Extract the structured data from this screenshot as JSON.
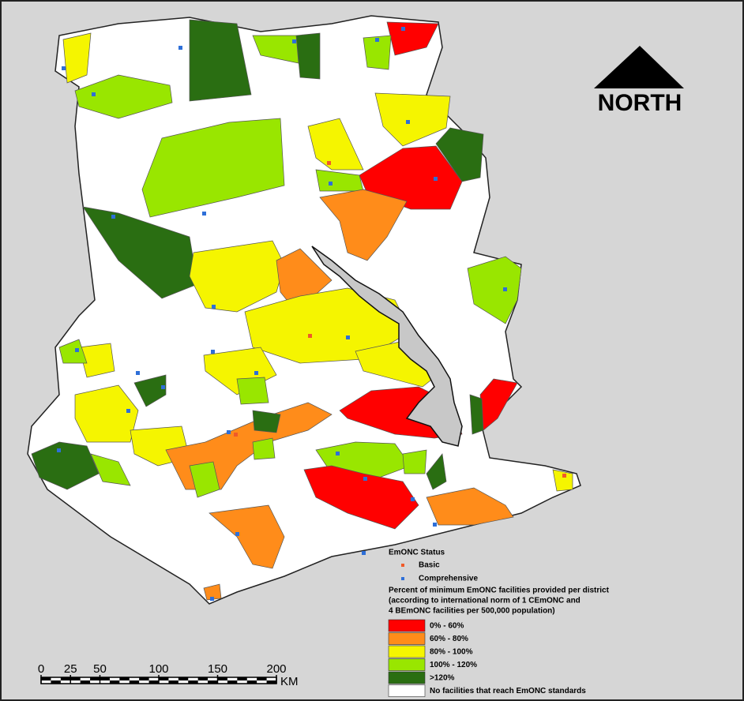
{
  "north_arrow": {
    "label": "NORTH"
  },
  "legend": {
    "status_title": "EmONC Status",
    "status_items": [
      {
        "label": "Basic",
        "color": "#f05a28"
      },
      {
        "label": "Comprehensive",
        "color": "#2e6fd8"
      }
    ],
    "percent_title": [
      "Percent of minimum EmONC facilities provided per district",
      "(according to international norm of 1 CEmONC and",
      "4 BEmONC facilities per 500,000 population)"
    ],
    "classes": [
      {
        "label": "0% - 60%",
        "color": "#ff0000"
      },
      {
        "label": "60% - 80%",
        "color": "#ff8c1a"
      },
      {
        "label": "80% - 100%",
        "color": "#f5f500"
      },
      {
        "label": "100% - 120%",
        "color": "#99e600"
      },
      {
        "label": ">120%",
        "color": "#2a6e12"
      },
      {
        "label": "No facilities that reach EmONC standards",
        "color": "#ffffff"
      }
    ]
  },
  "scale_bar": {
    "ticks": [
      0,
      25,
      50,
      100,
      150,
      200
    ],
    "unit": "KM"
  }
}
